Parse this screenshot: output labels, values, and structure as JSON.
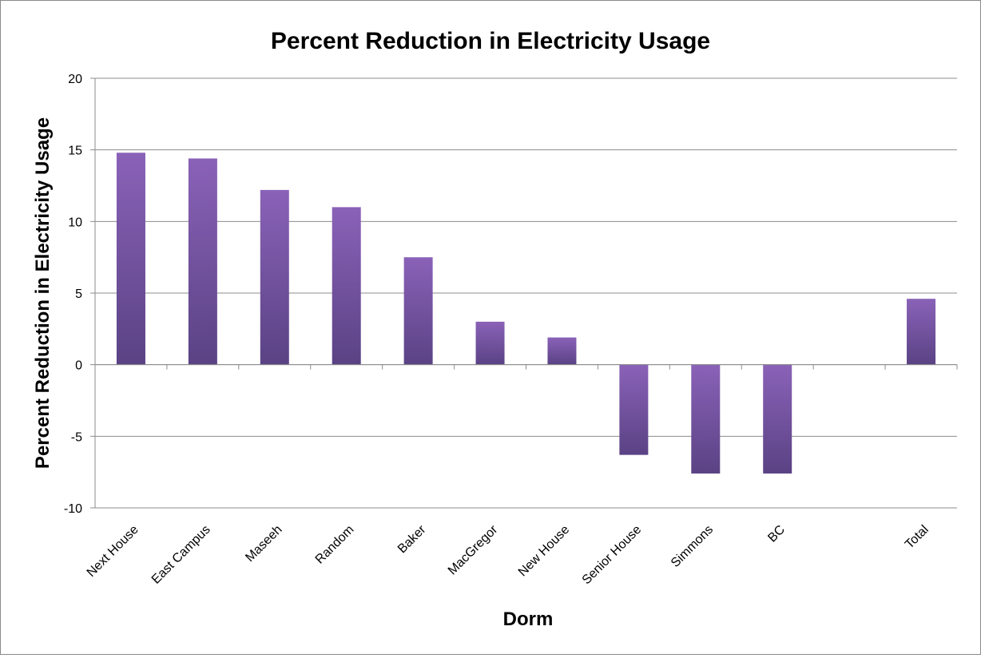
{
  "chart_data": {
    "type": "bar",
    "title": "Percent Reduction in Electricity Usage",
    "xlabel": "Dorm",
    "ylabel": "Percent Reduction in Electricity Usage",
    "ylim": [
      -10,
      20
    ],
    "yticks": [
      -10,
      -5,
      0,
      5,
      10,
      15,
      20
    ],
    "grid": true,
    "legend": "none",
    "categories": [
      "Next House",
      "East Campus",
      "Maseeh",
      "Random",
      "Baker",
      "MacGregor",
      "New House",
      "Senior House",
      "Simmons",
      "BC",
      "",
      "Total"
    ],
    "values": [
      14.8,
      14.4,
      12.2,
      11.0,
      7.5,
      3.0,
      1.9,
      -6.3,
      -7.6,
      -7.6,
      null,
      4.6
    ],
    "colors": {
      "bar_top": "#8a62b8",
      "bar_bottom": "#5a4284",
      "grid": "#8c8c8c",
      "axis": "#8c8c8c"
    }
  }
}
